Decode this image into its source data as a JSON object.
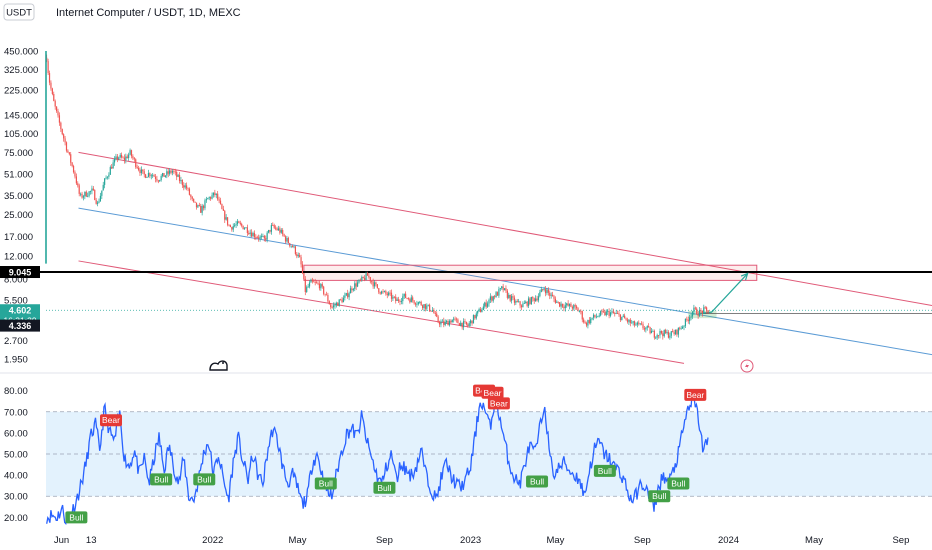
{
  "header": {
    "currency_button": "USDT",
    "title": "Internet Computer / USDT, 1D, MEXC"
  },
  "colors": {
    "candle_up": "#26a69a",
    "candle_down": "#ef5350",
    "rsi_line": "#2962ff",
    "rsi_band_fill": "#e3f2fd",
    "channel_red": "#e05a78",
    "channel_blue": "#5b9bd5",
    "level_line": "#000000",
    "projection": "#26a69a",
    "bull_label": "#43a047",
    "bear_label": "#e53935"
  },
  "chart_data": [
    {
      "type": "candlestick",
      "title": "Internet Computer / USDT, 1D, MEXC",
      "scale": "log",
      "y_ticks": [
        "450.000",
        "325.000",
        "225.000",
        "145.000",
        "105.000",
        "75.000",
        "51.000",
        "35.000",
        "25.000",
        "17.000",
        "12.000",
        "8.000",
        "5.500",
        "2.700",
        "1.950"
      ],
      "y_tick_values": [
        450,
        325,
        225,
        145,
        105,
        75,
        51,
        35,
        25,
        17,
        12,
        8,
        5.5,
        2.7,
        1.95
      ],
      "x_ticks": [
        "Jun",
        "13",
        "2022",
        "May",
        "Sep",
        "2023",
        "May",
        "Sep",
        "2024",
        "May",
        "Sep"
      ],
      "x_range": [
        "2021-05-10",
        "2024-10-15"
      ],
      "y_range": [
        1.6,
        700
      ],
      "price_labels": {
        "level": "9.045",
        "current": "4.602",
        "countdown": "16:31:39",
        "low": "4.336"
      },
      "level_value": 9.045,
      "current_value": 4.602,
      "low_value": 4.336,
      "close_points": [
        [
          "2021-05-11",
          400
        ],
        [
          "2021-05-14",
          280
        ],
        [
          "2021-05-20",
          190
        ],
        [
          "2021-05-25",
          150
        ],
        [
          "2021-06-01",
          110
        ],
        [
          "2021-06-10",
          75
        ],
        [
          "2021-06-20",
          50
        ],
        [
          "2021-06-27",
          34
        ],
        [
          "2021-07-05",
          36
        ],
        [
          "2021-07-15",
          38
        ],
        [
          "2021-07-22",
          30
        ],
        [
          "2021-08-01",
          45
        ],
        [
          "2021-08-10",
          58
        ],
        [
          "2021-08-20",
          70
        ],
        [
          "2021-08-28",
          66
        ],
        [
          "2021-09-06",
          74
        ],
        [
          "2021-09-15",
          60
        ],
        [
          "2021-09-25",
          50
        ],
        [
          "2021-10-05",
          52
        ],
        [
          "2021-10-15",
          47
        ],
        [
          "2021-10-25",
          50
        ],
        [
          "2021-11-05",
          54
        ],
        [
          "2021-11-15",
          46
        ],
        [
          "2021-11-25",
          40
        ],
        [
          "2021-12-05",
          30
        ],
        [
          "2021-12-15",
          27
        ],
        [
          "2021-12-25",
          33
        ],
        [
          "2022-01-05",
          36
        ],
        [
          "2022-01-15",
          26
        ],
        [
          "2022-01-25",
          20
        ],
        [
          "2022-02-05",
          21
        ],
        [
          "2022-02-15",
          20
        ],
        [
          "2022-02-25",
          18
        ],
        [
          "2022-03-05",
          17
        ],
        [
          "2022-03-15",
          16
        ],
        [
          "2022-03-25",
          20
        ],
        [
          "2022-04-05",
          19
        ],
        [
          "2022-04-15",
          16
        ],
        [
          "2022-04-25",
          14
        ],
        [
          "2022-05-05",
          11
        ],
        [
          "2022-05-12",
          6.5
        ],
        [
          "2022-05-20",
          7.5
        ],
        [
          "2022-06-01",
          7.2
        ],
        [
          "2022-06-10",
          6.0
        ],
        [
          "2022-06-18",
          4.8
        ],
        [
          "2022-06-28",
          5.3
        ],
        [
          "2022-07-08",
          5.8
        ],
        [
          "2022-07-18",
          7.0
        ],
        [
          "2022-07-28",
          7.6
        ],
        [
          "2022-08-08",
          8.5
        ],
        [
          "2022-08-18",
          7.2
        ],
        [
          "2022-08-28",
          6.3
        ],
        [
          "2022-09-08",
          6.0
        ],
        [
          "2022-09-18",
          5.4
        ],
        [
          "2022-09-28",
          5.9
        ],
        [
          "2022-10-08",
          5.6
        ],
        [
          "2022-10-18",
          5.3
        ],
        [
          "2022-10-28",
          5.0
        ],
        [
          "2022-11-08",
          4.6
        ],
        [
          "2022-11-15",
          3.8
        ],
        [
          "2022-11-25",
          3.6
        ],
        [
          "2022-12-05",
          3.9
        ],
        [
          "2022-12-15",
          3.7
        ],
        [
          "2022-12-28",
          3.5
        ],
        [
          "2023-01-08",
          4.2
        ],
        [
          "2023-01-18",
          4.8
        ],
        [
          "2023-01-28",
          5.6
        ],
        [
          "2023-02-08",
          6.2
        ],
        [
          "2023-02-15",
          6.8
        ],
        [
          "2023-02-22",
          6.0
        ],
        [
          "2023-03-05",
          5.3
        ],
        [
          "2023-03-15",
          5.0
        ],
        [
          "2023-03-25",
          5.4
        ],
        [
          "2023-04-05",
          5.8
        ],
        [
          "2023-04-15",
          6.8
        ],
        [
          "2023-04-25",
          5.9
        ],
        [
          "2023-05-05",
          5.2
        ],
        [
          "2023-05-15",
          5.0
        ],
        [
          "2023-05-25",
          4.9
        ],
        [
          "2023-06-05",
          4.5
        ],
        [
          "2023-06-12",
          3.6
        ],
        [
          "2023-06-22",
          4.0
        ],
        [
          "2023-07-05",
          4.3
        ],
        [
          "2023-07-15",
          4.4
        ],
        [
          "2023-07-25",
          4.3
        ],
        [
          "2023-08-05",
          4.0
        ],
        [
          "2023-08-18",
          3.6
        ],
        [
          "2023-08-28",
          3.5
        ],
        [
          "2023-09-08",
          3.3
        ],
        [
          "2023-09-18",
          3.0
        ],
        [
          "2023-09-28",
          3.1
        ],
        [
          "2023-10-08",
          3.0
        ],
        [
          "2023-10-18",
          3.1
        ],
        [
          "2023-10-28",
          3.5
        ],
        [
          "2023-11-05",
          4.0
        ],
        [
          "2023-11-12",
          4.6
        ],
        [
          "2023-11-20",
          4.4
        ],
        [
          "2023-11-28",
          4.6
        ],
        [
          "2023-12-03",
          4.5
        ]
      ],
      "channel_upper_red": [
        [
          "2021-06-25",
          75
        ],
        [
          "2024-10-15",
          5.0
        ]
      ],
      "channel_lower_red": [
        [
          "2021-06-25",
          11
        ],
        [
          "2023-10-30",
          1.8
        ]
      ],
      "trendline_blue": [
        [
          "2021-06-25",
          28
        ],
        [
          "2024-10-15",
          2.1
        ]
      ],
      "resistance_box": {
        "x": [
          "2022-05-10",
          "2024-02-10"
        ],
        "y": [
          7.8,
          10.2
        ]
      },
      "support_box": {
        "x": [
          "2023-11-05",
          "2023-12-15"
        ],
        "y": [
          4.0,
          4.55
        ]
      },
      "horizontal_level": 9.045,
      "gray_level": 4.336,
      "projection": [
        [
          "2023-11-20",
          4.336
        ],
        [
          "2023-12-08",
          4.45
        ],
        [
          "2024-01-28",
          8.8
        ]
      ]
    },
    {
      "type": "line",
      "indicator": "RSI",
      "y_ticks": [
        "80.00",
        "70.00",
        "60.00",
        "50.00",
        "40.00",
        "30.00",
        "20.00"
      ],
      "y_tick_values": [
        80,
        70,
        60,
        50,
        40,
        30,
        20
      ],
      "y_range": [
        14,
        86
      ],
      "band": [
        30,
        70
      ],
      "midline": 50,
      "points": [
        [
          "2021-05-11",
          20
        ],
        [
          "2021-05-18",
          21
        ],
        [
          "2021-05-25",
          20
        ],
        [
          "2021-06-02",
          24
        ],
        [
          "2021-06-08",
          18
        ],
        [
          "2021-06-15",
          22
        ],
        [
          "2021-06-22",
          28
        ],
        [
          "2021-06-29",
          36
        ],
        [
          "2021-07-06",
          46
        ],
        [
          "2021-07-12",
          58
        ],
        [
          "2021-07-19",
          64
        ],
        [
          "2021-07-25",
          52
        ],
        [
          "2021-08-01",
          72
        ],
        [
          "2021-08-08",
          60
        ],
        [
          "2021-08-15",
          56
        ],
        [
          "2021-08-22",
          70
        ],
        [
          "2021-08-29",
          48
        ],
        [
          "2021-09-05",
          44
        ],
        [
          "2021-09-12",
          52
        ],
        [
          "2021-09-19",
          40
        ],
        [
          "2021-09-26",
          48
        ],
        [
          "2021-10-03",
          36
        ],
        [
          "2021-10-10",
          48
        ],
        [
          "2021-10-17",
          58
        ],
        [
          "2021-10-24",
          42
        ],
        [
          "2021-10-31",
          54
        ],
        [
          "2021-11-07",
          44
        ],
        [
          "2021-11-14",
          36
        ],
        [
          "2021-11-21",
          48
        ],
        [
          "2021-11-28",
          30
        ],
        [
          "2021-12-05",
          28
        ],
        [
          "2021-12-12",
          38
        ],
        [
          "2021-12-19",
          50
        ],
        [
          "2021-12-26",
          56
        ],
        [
          "2022-01-02",
          40
        ],
        [
          "2022-01-09",
          50
        ],
        [
          "2022-01-16",
          38
        ],
        [
          "2022-01-23",
          28
        ],
        [
          "2022-01-30",
          46
        ],
        [
          "2022-02-06",
          58
        ],
        [
          "2022-02-13",
          46
        ],
        [
          "2022-02-20",
          38
        ],
        [
          "2022-02-27",
          50
        ],
        [
          "2022-03-06",
          40
        ],
        [
          "2022-03-13",
          36
        ],
        [
          "2022-03-20",
          52
        ],
        [
          "2022-03-27",
          62
        ],
        [
          "2022-04-03",
          56
        ],
        [
          "2022-04-10",
          44
        ],
        [
          "2022-04-17",
          36
        ],
        [
          "2022-04-24",
          40
        ],
        [
          "2022-05-01",
          34
        ],
        [
          "2022-05-08",
          26
        ],
        [
          "2022-05-15",
          30
        ],
        [
          "2022-05-22",
          46
        ],
        [
          "2022-05-29",
          50
        ],
        [
          "2022-06-05",
          40
        ],
        [
          "2022-06-12",
          32
        ],
        [
          "2022-06-19",
          30
        ],
        [
          "2022-06-26",
          42
        ],
        [
          "2022-07-03",
          52
        ],
        [
          "2022-07-10",
          60
        ],
        [
          "2022-07-17",
          62
        ],
        [
          "2022-07-24",
          58
        ],
        [
          "2022-07-31",
          68
        ],
        [
          "2022-08-07",
          56
        ],
        [
          "2022-08-14",
          48
        ],
        [
          "2022-08-21",
          40
        ],
        [
          "2022-08-28",
          36
        ],
        [
          "2022-09-04",
          44
        ],
        [
          "2022-09-11",
          50
        ],
        [
          "2022-09-18",
          38
        ],
        [
          "2022-09-25",
          46
        ],
        [
          "2022-10-02",
          42
        ],
        [
          "2022-10-09",
          40
        ],
        [
          "2022-10-16",
          44
        ],
        [
          "2022-10-23",
          52
        ],
        [
          "2022-10-30",
          40
        ],
        [
          "2022-11-06",
          34
        ],
        [
          "2022-11-13",
          28
        ],
        [
          "2022-11-20",
          38
        ],
        [
          "2022-11-27",
          46
        ],
        [
          "2022-12-04",
          40
        ],
        [
          "2022-12-11",
          36
        ],
        [
          "2022-12-18",
          34
        ],
        [
          "2022-12-25",
          38
        ],
        [
          "2023-01-01",
          44
        ],
        [
          "2023-01-08",
          60
        ],
        [
          "2023-01-15",
          76
        ],
        [
          "2023-01-22",
          70
        ],
        [
          "2023-01-29",
          62
        ],
        [
          "2023-02-05",
          78
        ],
        [
          "2023-02-12",
          66
        ],
        [
          "2023-02-19",
          54
        ],
        [
          "2023-02-26",
          44
        ],
        [
          "2023-03-05",
          38
        ],
        [
          "2023-03-12",
          36
        ],
        [
          "2023-03-19",
          46
        ],
        [
          "2023-03-26",
          54
        ],
        [
          "2023-04-02",
          50
        ],
        [
          "2023-04-09",
          62
        ],
        [
          "2023-04-16",
          74
        ],
        [
          "2023-04-23",
          48
        ],
        [
          "2023-04-30",
          40
        ],
        [
          "2023-05-07",
          44
        ],
        [
          "2023-05-14",
          46
        ],
        [
          "2023-05-21",
          42
        ],
        [
          "2023-05-28",
          40
        ],
        [
          "2023-06-04",
          38
        ],
        [
          "2023-06-11",
          30
        ],
        [
          "2023-06-18",
          42
        ],
        [
          "2023-06-25",
          52
        ],
        [
          "2023-07-02",
          56
        ],
        [
          "2023-07-09",
          50
        ],
        [
          "2023-07-16",
          48
        ],
        [
          "2023-07-23",
          44
        ],
        [
          "2023-07-30",
          42
        ],
        [
          "2023-08-06",
          38
        ],
        [
          "2023-08-13",
          30
        ],
        [
          "2023-08-20",
          28
        ],
        [
          "2023-08-27",
          34
        ],
        [
          "2023-09-03",
          36
        ],
        [
          "2023-09-10",
          30
        ],
        [
          "2023-09-17",
          24
        ],
        [
          "2023-09-24",
          34
        ],
        [
          "2023-10-01",
          40
        ],
        [
          "2023-10-08",
          36
        ],
        [
          "2023-10-15",
          42
        ],
        [
          "2023-10-22",
          50
        ],
        [
          "2023-10-29",
          62
        ],
        [
          "2023-11-05",
          72
        ],
        [
          "2023-11-12",
          76
        ],
        [
          "2023-11-19",
          68
        ],
        [
          "2023-11-26",
          52
        ],
        [
          "2023-12-03",
          56
        ]
      ],
      "signals": [
        {
          "label": "Bull",
          "type": "bull",
          "date": "2021-06-22",
          "value": 20
        },
        {
          "label": "Bear",
          "type": "bear",
          "date": "2021-08-10",
          "value": 66
        },
        {
          "label": "Bull",
          "type": "bull",
          "date": "2021-10-20",
          "value": 38
        },
        {
          "label": "Bull",
          "type": "bull",
          "date": "2021-12-20",
          "value": 38
        },
        {
          "label": "Bull",
          "type": "bull",
          "date": "2022-06-10",
          "value": 36
        },
        {
          "label": "Bull",
          "type": "bull",
          "date": "2022-09-01",
          "value": 34
        },
        {
          "label": "Bear",
          "type": "bear",
          "date": "2023-01-20",
          "value": 80
        },
        {
          "label": "Bear",
          "type": "bear",
          "date": "2023-02-01",
          "value": 79
        },
        {
          "label": "Bear",
          "type": "bear",
          "date": "2023-02-10",
          "value": 74
        },
        {
          "label": "Bull",
          "type": "bull",
          "date": "2023-04-05",
          "value": 37
        },
        {
          "label": "Bull",
          "type": "bull",
          "date": "2023-07-10",
          "value": 42
        },
        {
          "label": "Bull",
          "type": "bull",
          "date": "2023-09-25",
          "value": 30
        },
        {
          "label": "Bull",
          "type": "bull",
          "date": "2023-10-22",
          "value": 36
        },
        {
          "label": "Bear",
          "type": "bear",
          "date": "2023-11-15",
          "value": 78
        }
      ]
    }
  ]
}
